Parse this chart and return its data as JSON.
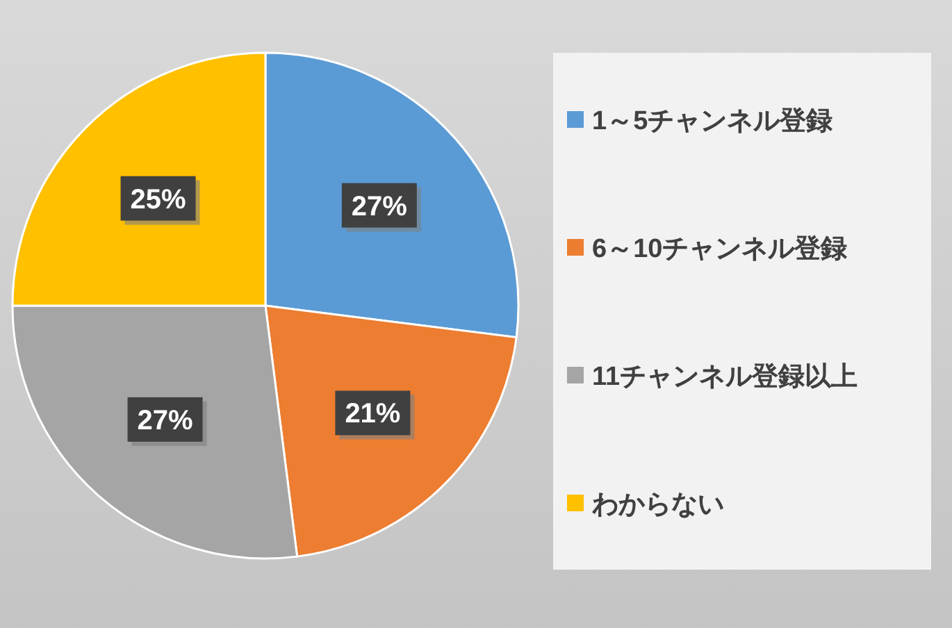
{
  "chart_data": {
    "type": "pie",
    "categories": [
      "1～5チャンネル登録",
      "6～10チャンネル登録",
      "11チャンネル登録以上",
      "わからない"
    ],
    "values": [
      27,
      21,
      27,
      25
    ],
    "colors": [
      "#5b9bd5",
      "#ed7d31",
      "#a5a5a5",
      "#ffc000"
    ],
    "value_labels": [
      "27%",
      "21%",
      "27%",
      "25%"
    ],
    "legend": "right"
  }
}
